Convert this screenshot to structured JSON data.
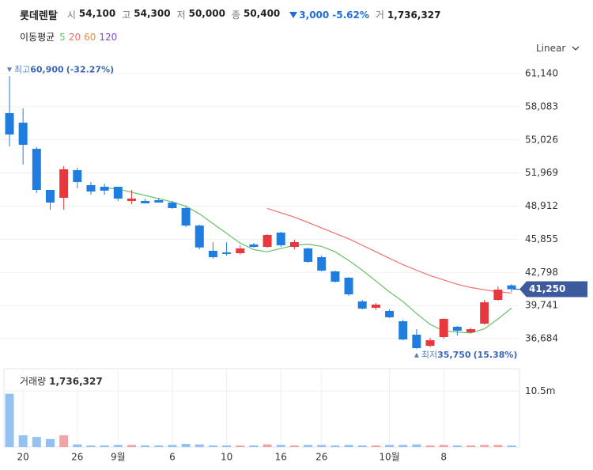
{
  "header": {
    "name": "롯데렌탈",
    "fields": [
      {
        "label": "시",
        "value": "54,100"
      },
      {
        "label": "고",
        "value": "54,300"
      },
      {
        "label": "저",
        "value": "50,000"
      },
      {
        "label": "종",
        "value": "50,400"
      }
    ],
    "change": "3,000",
    "change_pct": "-5.62%",
    "volume_label": "거",
    "volume": "1,736,327",
    "ma_label": "이동평균",
    "scale_mode": "Linear"
  },
  "chart_data": {
    "type": "candlestick",
    "categories": [
      null,
      "20",
      null,
      null,
      null,
      "26",
      null,
      null,
      "9월",
      null,
      null,
      null,
      "6",
      null,
      null,
      null,
      "10",
      null,
      null,
      null,
      "16",
      null,
      null,
      "26",
      null,
      null,
      null,
      null,
      "10월",
      null,
      null,
      null,
      "8",
      null,
      null,
      null,
      null,
      null
    ],
    "open": [
      57490,
      56610,
      54200,
      50410,
      49680,
      52230,
      50850,
      50700,
      50700,
      49390,
      49390,
      49460,
      49240,
      48730,
      47120,
      44790,
      44640,
      44570,
      45370,
      45150,
      46470,
      45150,
      45010,
      44200,
      42890,
      42310,
      40120,
      39530,
      39240,
      38290,
      37050,
      36030,
      36830,
      37780,
      37270,
      38070,
      40260,
      41600
    ],
    "high": [
      60900,
      57930,
      54350,
      50410,
      52600,
      52450,
      51140,
      50990,
      50700,
      50410,
      49610,
      49680,
      49390,
      48880,
      47200,
      45580,
      45580,
      45300,
      45520,
      46320,
      46540,
      45810,
      45080,
      44350,
      42960,
      42380,
      40260,
      39970,
      39390,
      38440,
      37560,
      36760,
      38580,
      37850,
      37700,
      40260,
      41500,
      41720
    ],
    "low": [
      54420,
      52750,
      50120,
      48580,
      48580,
      50560,
      49970,
      49970,
      49390,
      49100,
      49240,
      49240,
      48660,
      46980,
      44930,
      44060,
      44350,
      44420,
      45080,
      45080,
      45150,
      44930,
      43690,
      42890,
      41870,
      40630,
      39390,
      39310,
      38580,
      36540,
      35750,
      35880,
      36680,
      36970,
      37200,
      37990,
      40190,
      41000
    ],
    "close": [
      55520,
      54570,
      50410,
      49240,
      52310,
      51140,
      50260,
      50340,
      49610,
      49610,
      49170,
      49240,
      48730,
      47120,
      45100,
      44200,
      44500,
      45010,
      45150,
      46250,
      45300,
      45590,
      43770,
      42960,
      41940,
      40770,
      39460,
      39830,
      38660,
      36610,
      35810,
      36540,
      38510,
      37420,
      37560,
      40040,
      41210,
      41250
    ],
    "up_color": "#e8383d",
    "down_color": "#1f7de0",
    "ylim": [
      34714,
      62089
    ],
    "yticks": [
      {
        "value": 61140,
        "label": "61,140"
      },
      {
        "value": 58083,
        "label": "58,083"
      },
      {
        "value": 55026,
        "label": "55,026"
      },
      {
        "value": 51969,
        "label": "51,969"
      },
      {
        "value": 48912,
        "label": "48,912"
      },
      {
        "value": 45855,
        "label": "45,855"
      },
      {
        "value": 42798,
        "label": "42,798"
      },
      {
        "value": 39741,
        "label": "39,741"
      },
      {
        "value": 36684,
        "label": "36,684"
      }
    ],
    "grid": true,
    "moving_averages": [
      {
        "name": "5",
        "color": "#66c266",
        "values": [
          null,
          null,
          null,
          null,
          null,
          null,
          null,
          50600,
          50500,
          50200,
          49900,
          49600,
          49300,
          48900,
          48200,
          47300,
          46400,
          45500,
          44900,
          44700,
          45000,
          45300,
          45400,
          45200,
          44700,
          43900,
          43000,
          42000,
          41000,
          40100,
          39000,
          38000,
          37400,
          37300,
          37200,
          37600,
          38500,
          39500
        ]
      },
      {
        "name": "20",
        "color": "#ef6f6f",
        "values": [
          null,
          null,
          null,
          null,
          null,
          null,
          null,
          null,
          null,
          null,
          null,
          null,
          null,
          null,
          null,
          null,
          null,
          null,
          null,
          48700,
          48300,
          47900,
          47400,
          46900,
          46400,
          45900,
          45300,
          44700,
          44100,
          43500,
          43000,
          42500,
          42100,
          41700,
          41400,
          41200,
          41000,
          40900
        ]
      },
      {
        "name": "60",
        "color": "#f08a3c",
        "values": [
          null,
          null,
          null,
          null,
          null,
          null,
          null,
          null,
          null,
          null,
          null,
          null,
          null,
          null,
          null,
          null,
          null,
          null,
          null,
          null,
          null,
          null,
          null,
          null,
          null,
          null,
          null,
          null,
          null,
          null,
          null,
          null,
          null,
          null,
          null,
          null,
          null,
          null
        ]
      },
      {
        "name": "120",
        "color": "#7b4fc9",
        "values": [
          null,
          null,
          null,
          null,
          null,
          null,
          null,
          null,
          null,
          null,
          null,
          null,
          null,
          null,
          null,
          null,
          null,
          null,
          null,
          null,
          null,
          null,
          null,
          null,
          null,
          null,
          null,
          null,
          null,
          null,
          null,
          null,
          null,
          null,
          null,
          null,
          null,
          null
        ]
      }
    ],
    "current": {
      "value": 41250,
      "label": "41,250"
    },
    "high_marker": {
      "label": "최고",
      "value": 60900,
      "value_label": "60,900",
      "change": "(-32.27%)"
    },
    "low_marker": {
      "label": "최저",
      "value": 35750,
      "value_label": "35,750",
      "change": "(15.38%)"
    },
    "volume": {
      "title": "거래량",
      "title_value": "1,736,327",
      "values": [
        10000000,
        2200000,
        1900000,
        1500000,
        2200000,
        500000,
        300000,
        300000,
        400000,
        400000,
        300000,
        300000,
        400000,
        600000,
        500000,
        300000,
        300000,
        300000,
        300000,
        500000,
        400000,
        300000,
        400000,
        400000,
        300000,
        400000,
        300000,
        300000,
        400000,
        400000,
        500000,
        300000,
        400000,
        300000,
        300000,
        400000,
        400000,
        300000
      ],
      "up_color": "#f2a3a6",
      "down_color": "#92c1f2",
      "ylim": [
        0,
        14700000
      ],
      "yticks": [
        {
          "value": 10500000,
          "label": "10.5m"
        }
      ]
    }
  }
}
